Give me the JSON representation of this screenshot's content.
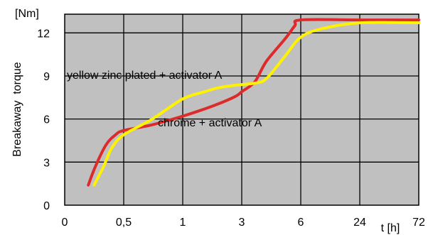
{
  "chart_data": {
    "type": "line",
    "title": "",
    "xlabel": "t [h]",
    "ylabel": "Breakaway  torque",
    "y_unit": "[Nm]",
    "ylim": [
      0,
      13.3
    ],
    "xlim": [
      0,
      72
    ],
    "x_scale": "categorical-log-like",
    "x_tick_values": [
      0,
      0.5,
      1,
      3,
      6,
      24,
      72
    ],
    "x_tick_labels": [
      "0",
      "0,5",
      "1",
      "3",
      "6",
      "24",
      "72"
    ],
    "y_ticks": [
      0,
      3,
      6,
      9,
      12
    ],
    "grid": true,
    "plot_background": "#c0c0c0",
    "annotations": [
      "yellow zinc plated + activator A",
      "chrome + activator A"
    ],
    "series": [
      {
        "color": "#dd2b2b",
        "points": [
          [
            0.2,
            1.4
          ],
          [
            0.26,
            2.7
          ],
          [
            0.35,
            4.2
          ],
          [
            0.43,
            4.9
          ],
          [
            0.5,
            5.2
          ],
          [
            0.7,
            5.6
          ],
          [
            1,
            6.2
          ],
          [
            1.5,
            6.7
          ],
          [
            2,
            7.1
          ],
          [
            2.7,
            7.6
          ],
          [
            3,
            7.9
          ],
          [
            3.5,
            8.6
          ],
          [
            4,
            10.0
          ],
          [
            5,
            11.6
          ],
          [
            5.6,
            12.5
          ],
          [
            6,
            12.9
          ],
          [
            24,
            12.9
          ],
          [
            72,
            12.9
          ]
        ]
      },
      {
        "color": "#fff200",
        "points": [
          [
            0.25,
            1.4
          ],
          [
            0.33,
            2.7
          ],
          [
            0.4,
            4.0
          ],
          [
            0.5,
            4.9
          ],
          [
            0.7,
            6.0
          ],
          [
            1,
            7.4
          ],
          [
            1.5,
            7.9
          ],
          [
            2,
            8.2
          ],
          [
            3,
            8.4
          ],
          [
            3.5,
            8.5
          ],
          [
            4,
            8.8
          ],
          [
            5,
            10.4
          ],
          [
            6,
            11.7
          ],
          [
            10,
            12.3
          ],
          [
            24,
            12.7
          ],
          [
            72,
            12.7
          ]
        ]
      }
    ]
  }
}
